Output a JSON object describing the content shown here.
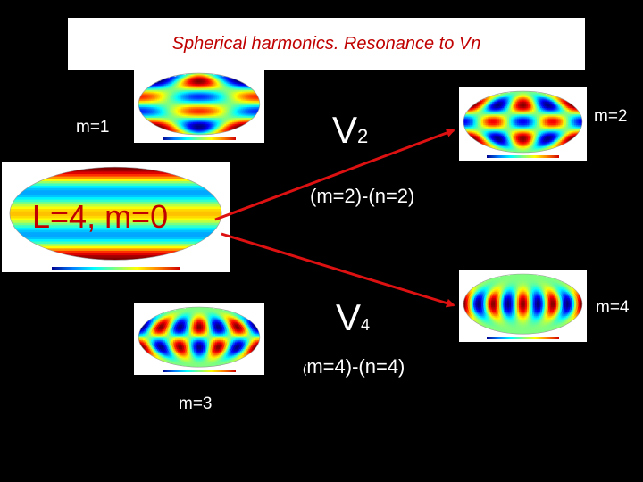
{
  "title": "Spherical harmonics. Resonance  to Vn",
  "colors": {
    "background": "#000000",
    "title_text": "#c00000",
    "main_label": "#c00000",
    "arrow": "#dd1111",
    "label_text": "#ffffff"
  },
  "labels": {
    "m1": "m=1",
    "m2": "m=2",
    "m3": "m=3",
    "m4": "m=4",
    "main": "L=4, m=0",
    "v2_letter": "V",
    "v2_sub": "2",
    "v4_letter": "V",
    "v4_sub": "4",
    "rel_2": "(m=2)-(n=2)",
    "rel_4_open": "(",
    "rel_4_rest": "m=4)-(n=4)"
  },
  "maps": [
    {
      "id": "main",
      "l": 4,
      "m": 0
    },
    {
      "id": "m1",
      "l": 4,
      "m": 1
    },
    {
      "id": "m2",
      "l": 4,
      "m": 2
    },
    {
      "id": "m3",
      "l": 4,
      "m": 3
    },
    {
      "id": "m4",
      "l": 4,
      "m": 4
    }
  ]
}
